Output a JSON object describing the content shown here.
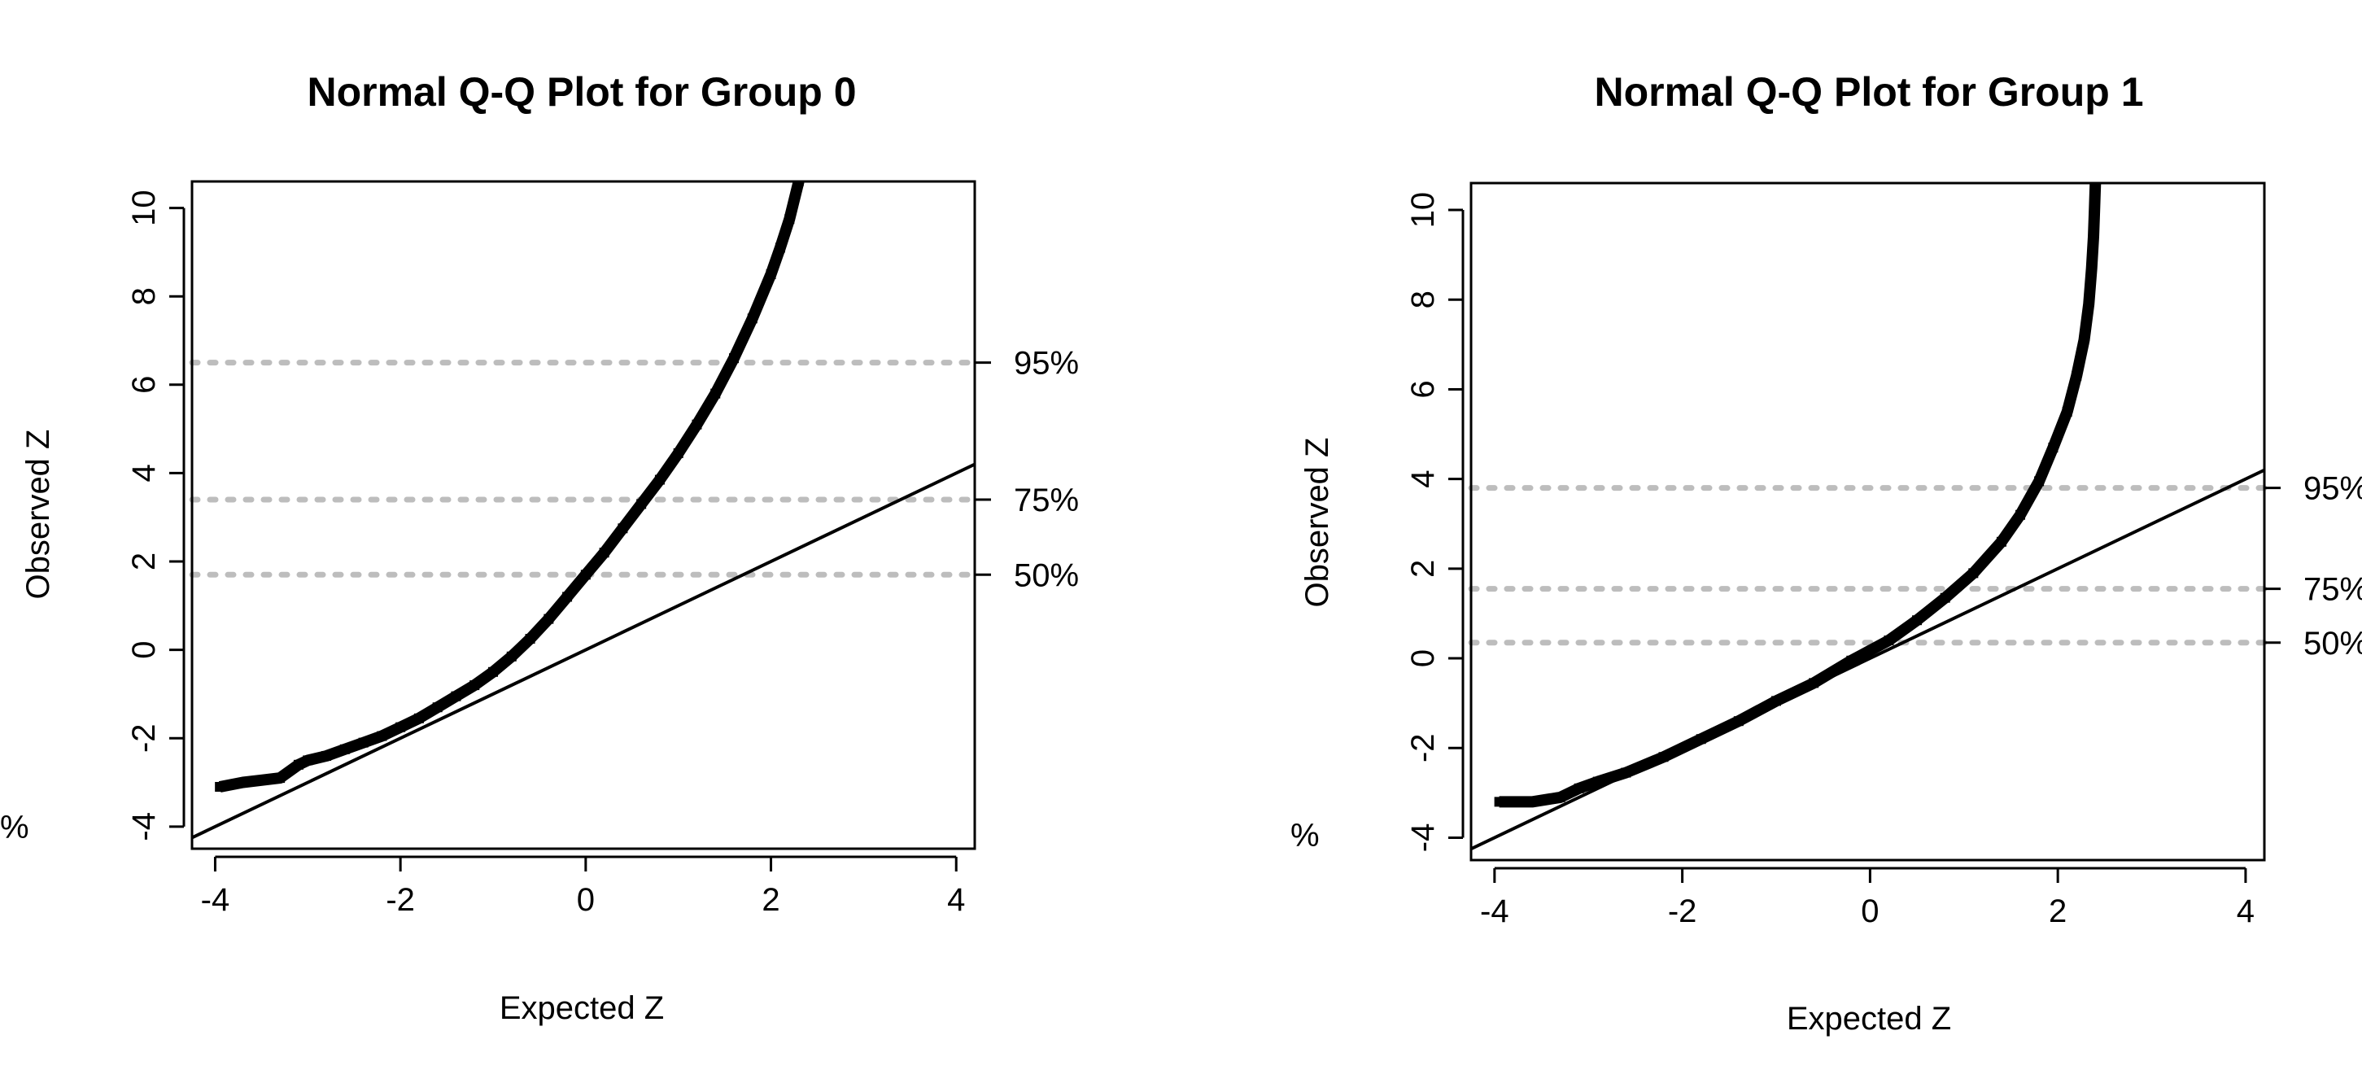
{
  "chart_data": [
    {
      "type": "scatter",
      "title": "Normal Q-Q Plot for Group 0",
      "xlabel": "Expected Z",
      "ylabel": "Observed Z",
      "xlim": [
        -4.25,
        4.2
      ],
      "ylim": [
        -4.5,
        10.6
      ],
      "xticks": [
        -4,
        -2,
        0,
        2,
        4
      ],
      "yticks": [
        -4,
        -2,
        0,
        2,
        4,
        6,
        8,
        10
      ],
      "reference_line": {
        "intercept": 0,
        "slope": 1
      },
      "percentile_lines": [
        {
          "label": "95%",
          "y": 6.5
        },
        {
          "label": "75%",
          "y": 3.4
        },
        {
          "label": "50%",
          "y": 1.7
        }
      ],
      "left_margin_label": "%",
      "series": [
        {
          "x": [
            -3.95,
            -3.7,
            -3.5,
            -3.3,
            -3.1,
            -3.0,
            -2.8,
            -2.6,
            -2.4,
            -2.2,
            -2.0,
            -1.8,
            -1.6,
            -1.4,
            -1.2,
            -1.0,
            -0.8,
            -0.6,
            -0.4,
            -0.2,
            0.0,
            0.2,
            0.4,
            0.6,
            0.8,
            1.0,
            1.2,
            1.4,
            1.6,
            1.8,
            2.0,
            2.1,
            2.2,
            2.3
          ],
          "y": [
            -3.1,
            -3.0,
            -2.95,
            -2.9,
            -2.6,
            -2.5,
            -2.4,
            -2.25,
            -2.1,
            -1.95,
            -1.75,
            -1.55,
            -1.3,
            -1.05,
            -0.8,
            -0.5,
            -0.15,
            0.25,
            0.7,
            1.2,
            1.7,
            2.2,
            2.75,
            3.3,
            3.85,
            4.45,
            5.1,
            5.8,
            6.6,
            7.5,
            8.5,
            9.1,
            9.75,
            10.6
          ]
        }
      ]
    },
    {
      "type": "scatter",
      "title": "Normal Q-Q Plot for Group 1",
      "xlabel": "Expected Z",
      "ylabel": "Observed Z",
      "xlim": [
        -4.25,
        4.2
      ],
      "ylim": [
        -4.5,
        10.6
      ],
      "xticks": [
        -4,
        -2,
        0,
        2,
        4
      ],
      "yticks": [
        -4,
        -2,
        0,
        2,
        4,
        6,
        8,
        10
      ],
      "reference_line": {
        "intercept": 0,
        "slope": 1
      },
      "percentile_lines": [
        {
          "label": "95%",
          "y": 3.8
        },
        {
          "label": "75%",
          "y": 1.55
        },
        {
          "label": "50%",
          "y": 0.35
        }
      ],
      "left_margin_label": "%",
      "series": [
        {
          "x": [
            -3.95,
            -3.6,
            -3.3,
            -3.1,
            -2.9,
            -2.6,
            -2.2,
            -1.8,
            -1.4,
            -1.0,
            -0.6,
            -0.2,
            0.2,
            0.5,
            0.8,
            1.1,
            1.4,
            1.6,
            1.8,
            1.95,
            2.1,
            2.2,
            2.28,
            2.33,
            2.36,
            2.38,
            2.39,
            2.4
          ],
          "y": [
            -3.2,
            -3.2,
            -3.1,
            -2.9,
            -2.75,
            -2.55,
            -2.2,
            -1.8,
            -1.4,
            -0.95,
            -0.55,
            -0.05,
            0.4,
            0.85,
            1.35,
            1.9,
            2.6,
            3.2,
            3.95,
            4.7,
            5.5,
            6.3,
            7.1,
            7.9,
            8.7,
            9.4,
            10.0,
            10.6
          ]
        }
      ]
    }
  ]
}
